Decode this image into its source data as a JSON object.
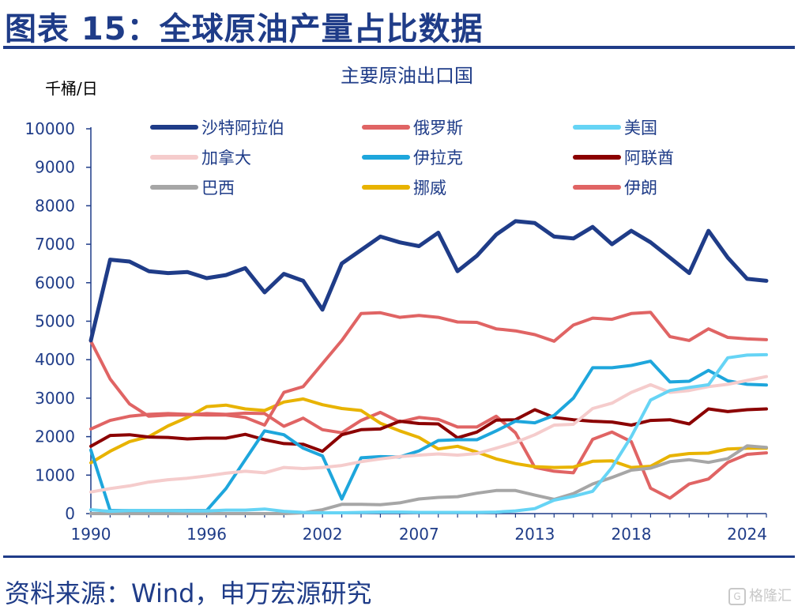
{
  "figure": {
    "title": "图表 15：全球原油产量占比数据",
    "source": "资料来源：Wind，申万宏源研究",
    "watermark": "格隆汇"
  },
  "chart_data": {
    "type": "line",
    "title": "主要原油出口国",
    "ylabel": "千桶/日",
    "xlabel": "",
    "ylim": [
      0,
      10000
    ],
    "yticks": [
      0,
      1000,
      2000,
      3000,
      4000,
      5000,
      6000,
      7000,
      8000,
      9000,
      10000
    ],
    "xlim": [
      1990,
      2025
    ],
    "xticks": [
      1990,
      1996,
      2002,
      2007,
      2013,
      2018,
      2024
    ],
    "grid": false,
    "legend": "top, 3 columns",
    "x": [
      1990,
      1991,
      1992,
      1993,
      1994,
      1995,
      1996,
      1997,
      1998,
      1999,
      2000,
      2001,
      2002,
      2003,
      2004,
      2005,
      2006,
      2007,
      2008,
      2009,
      2010,
      2011,
      2012,
      2013,
      2014,
      2015,
      2016,
      2017,
      2018,
      2019,
      2020,
      2021,
      2022,
      2023,
      2024,
      2025
    ],
    "series": [
      {
        "name": "沙特阿拉伯",
        "color": "#1f3c88",
        "width": 5,
        "values": [
          4500,
          6600,
          6550,
          6300,
          6250,
          6280,
          6120,
          6200,
          6380,
          5750,
          6230,
          6050,
          5300,
          6500,
          6850,
          7200,
          7050,
          6950,
          7300,
          6300,
          6700,
          7250,
          7600,
          7550,
          7200,
          7150,
          7450,
          7000,
          7350,
          7050,
          6650,
          6250,
          7350,
          6650,
          6100,
          6050
        ]
      },
      {
        "name": "俄罗斯",
        "color": "#e06464",
        "width": 4,
        "values": [
          2200,
          2420,
          2530,
          2580,
          2600,
          2580,
          2560,
          2560,
          2500,
          2300,
          3150,
          3300,
          3900,
          4500,
          5200,
          5220,
          5100,
          5150,
          5100,
          4980,
          4970,
          4800,
          4750,
          4650,
          4480,
          4900,
          5080,
          5050,
          5200,
          5230,
          4600,
          4500,
          4800,
          4580,
          4540,
          4520
        ]
      },
      {
        "name": "美国",
        "color": "#66d4f5",
        "width": 4,
        "values": [
          100,
          60,
          80,
          80,
          80,
          70,
          70,
          90,
          90,
          120,
          60,
          30,
          20,
          20,
          30,
          40,
          40,
          30,
          30,
          30,
          30,
          40,
          70,
          130,
          350,
          450,
          580,
          1200,
          2000,
          2950,
          3200,
          3280,
          3350,
          4050,
          4120,
          4130
        ]
      },
      {
        "name": "加拿大",
        "color": "#f5cccc",
        "width": 4,
        "values": [
          560,
          650,
          720,
          820,
          880,
          920,
          980,
          1050,
          1100,
          1060,
          1200,
          1170,
          1200,
          1250,
          1350,
          1420,
          1480,
          1520,
          1550,
          1520,
          1560,
          1700,
          1850,
          2050,
          2300,
          2320,
          2730,
          2870,
          3150,
          3350,
          3150,
          3200,
          3300,
          3360,
          3460,
          3560
        ]
      },
      {
        "name": "伊拉克",
        "color": "#1ea6dc",
        "width": 4,
        "values": [
          1650,
          80,
          80,
          80,
          80,
          80,
          80,
          650,
          1400,
          2150,
          2050,
          1700,
          1500,
          380,
          1450,
          1480,
          1470,
          1630,
          1900,
          1920,
          1920,
          2150,
          2400,
          2360,
          2550,
          3000,
          3790,
          3790,
          3850,
          3960,
          3420,
          3440,
          3720,
          3450,
          3360,
          3340
        ]
      },
      {
        "name": "阿联酋",
        "color": "#8b0000",
        "width": 4,
        "values": [
          1750,
          2030,
          2050,
          1990,
          1980,
          1940,
          1960,
          1960,
          2060,
          1920,
          1820,
          1800,
          1620,
          2050,
          2180,
          2200,
          2400,
          2340,
          2330,
          1970,
          2120,
          2430,
          2440,
          2700,
          2500,
          2440,
          2400,
          2380,
          2300,
          2420,
          2440,
          2330,
          2720,
          2650,
          2700,
          2720
        ]
      },
      {
        "name": "巴西",
        "color": "#a6a6a6",
        "width": 4,
        "values": [
          0,
          0,
          0,
          0,
          0,
          0,
          0,
          0,
          0,
          0,
          0,
          20,
          100,
          240,
          240,
          230,
          280,
          380,
          420,
          440,
          530,
          600,
          600,
          480,
          370,
          520,
          770,
          940,
          1130,
          1180,
          1350,
          1400,
          1330,
          1430,
          1760,
          1720
        ]
      },
      {
        "name": "挪威",
        "color": "#e8b300",
        "width": 4,
        "values": [
          1320,
          1620,
          1870,
          2000,
          2280,
          2500,
          2780,
          2820,
          2720,
          2680,
          2900,
          2980,
          2830,
          2730,
          2680,
          2350,
          2150,
          1980,
          1680,
          1750,
          1600,
          1420,
          1300,
          1220,
          1200,
          1210,
          1360,
          1370,
          1200,
          1230,
          1500,
          1560,
          1570,
          1680,
          1700,
          1700
        ]
      },
      {
        "name": "伊朗",
        "color": "#e06464",
        "width": 4,
        "values": [
          4480,
          3500,
          2850,
          2530,
          2560,
          2560,
          2600,
          2580,
          2610,
          2600,
          2270,
          2480,
          2180,
          2100,
          2420,
          2630,
          2380,
          2500,
          2450,
          2250,
          2250,
          2530,
          2100,
          1200,
          1100,
          1060,
          1930,
          2120,
          1870,
          660,
          400,
          770,
          900,
          1330,
          1540,
          1580
        ]
      }
    ]
  }
}
